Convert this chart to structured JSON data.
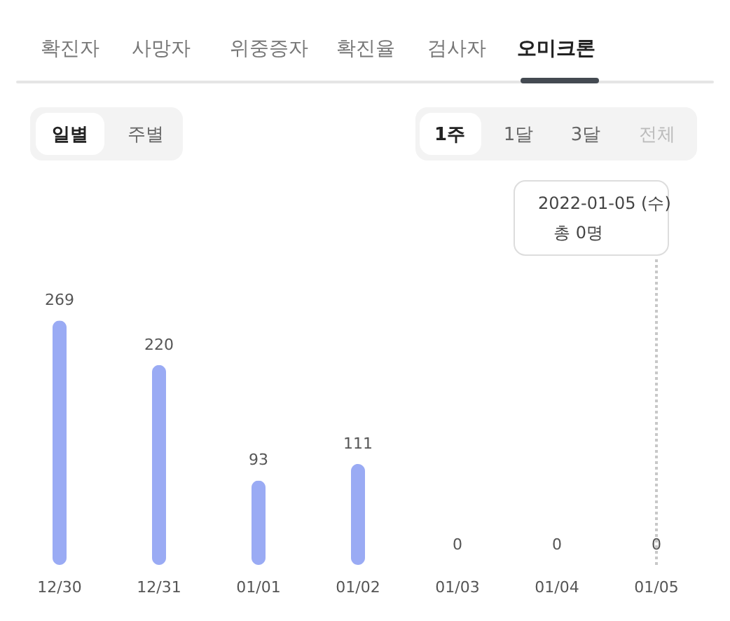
{
  "chart_data": {
    "type": "bar",
    "categories": [
      "12/30",
      "12/31",
      "01/01",
      "01/02",
      "01/03",
      "01/04",
      "01/05"
    ],
    "values": [
      269,
      220,
      93,
      111,
      0,
      0,
      0
    ],
    "color": "#9aabf4",
    "data_labels": true,
    "ref_lines": [
      {
        "axis": "x",
        "value": "01/05",
        "color": "#c8c8c8",
        "line_style": "dotted"
      }
    ],
    "annotations": [
      "확진자",
      "사망자",
      "위중증자",
      "확진율",
      "검사자",
      "오미크론",
      "일별",
      "주별",
      "1주",
      "1달",
      "3달",
      "전체",
      "2022-01-05 (수)",
      "총 0명"
    ]
  }
}
